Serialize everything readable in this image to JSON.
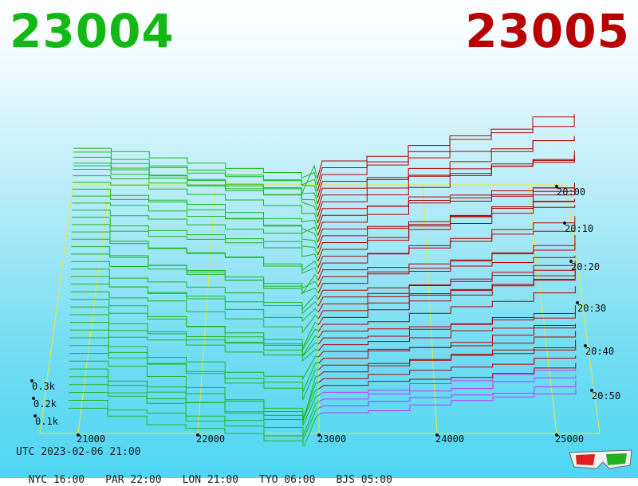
{
  "header": {
    "left_symbol": "23004",
    "right_symbol": "23005",
    "left_color": "#14b814",
    "right_color": "#b80000"
  },
  "footer": {
    "utc": "UTC 2023-02-06 21:00",
    "zones": [
      "NYC 16:00",
      "PAR 22:00",
      "LON 21:00",
      "TYO 06:00",
      "BJS 05:00"
    ]
  },
  "chart_data": {
    "type": "area",
    "title": "",
    "xlabel": "",
    "ylabel": "",
    "x_ticks": [
      "21000",
      "22000",
      "23000",
      "24000",
      "25000"
    ],
    "z_ticks": [
      "0.1k",
      "0.2k",
      "0.3k"
    ],
    "time_ticks": [
      "20:00",
      "20:10",
      "20:20",
      "20:30",
      "20:40",
      "20:50"
    ],
    "center_x": 23000,
    "series": [
      {
        "name": "23004",
        "color": "#1fb81f",
        "side": "left"
      },
      {
        "name": "23005",
        "color": "#b30000",
        "side": "right"
      }
    ],
    "highlight_color": "#cc33ff",
    "grid": true,
    "legend": "top"
  }
}
